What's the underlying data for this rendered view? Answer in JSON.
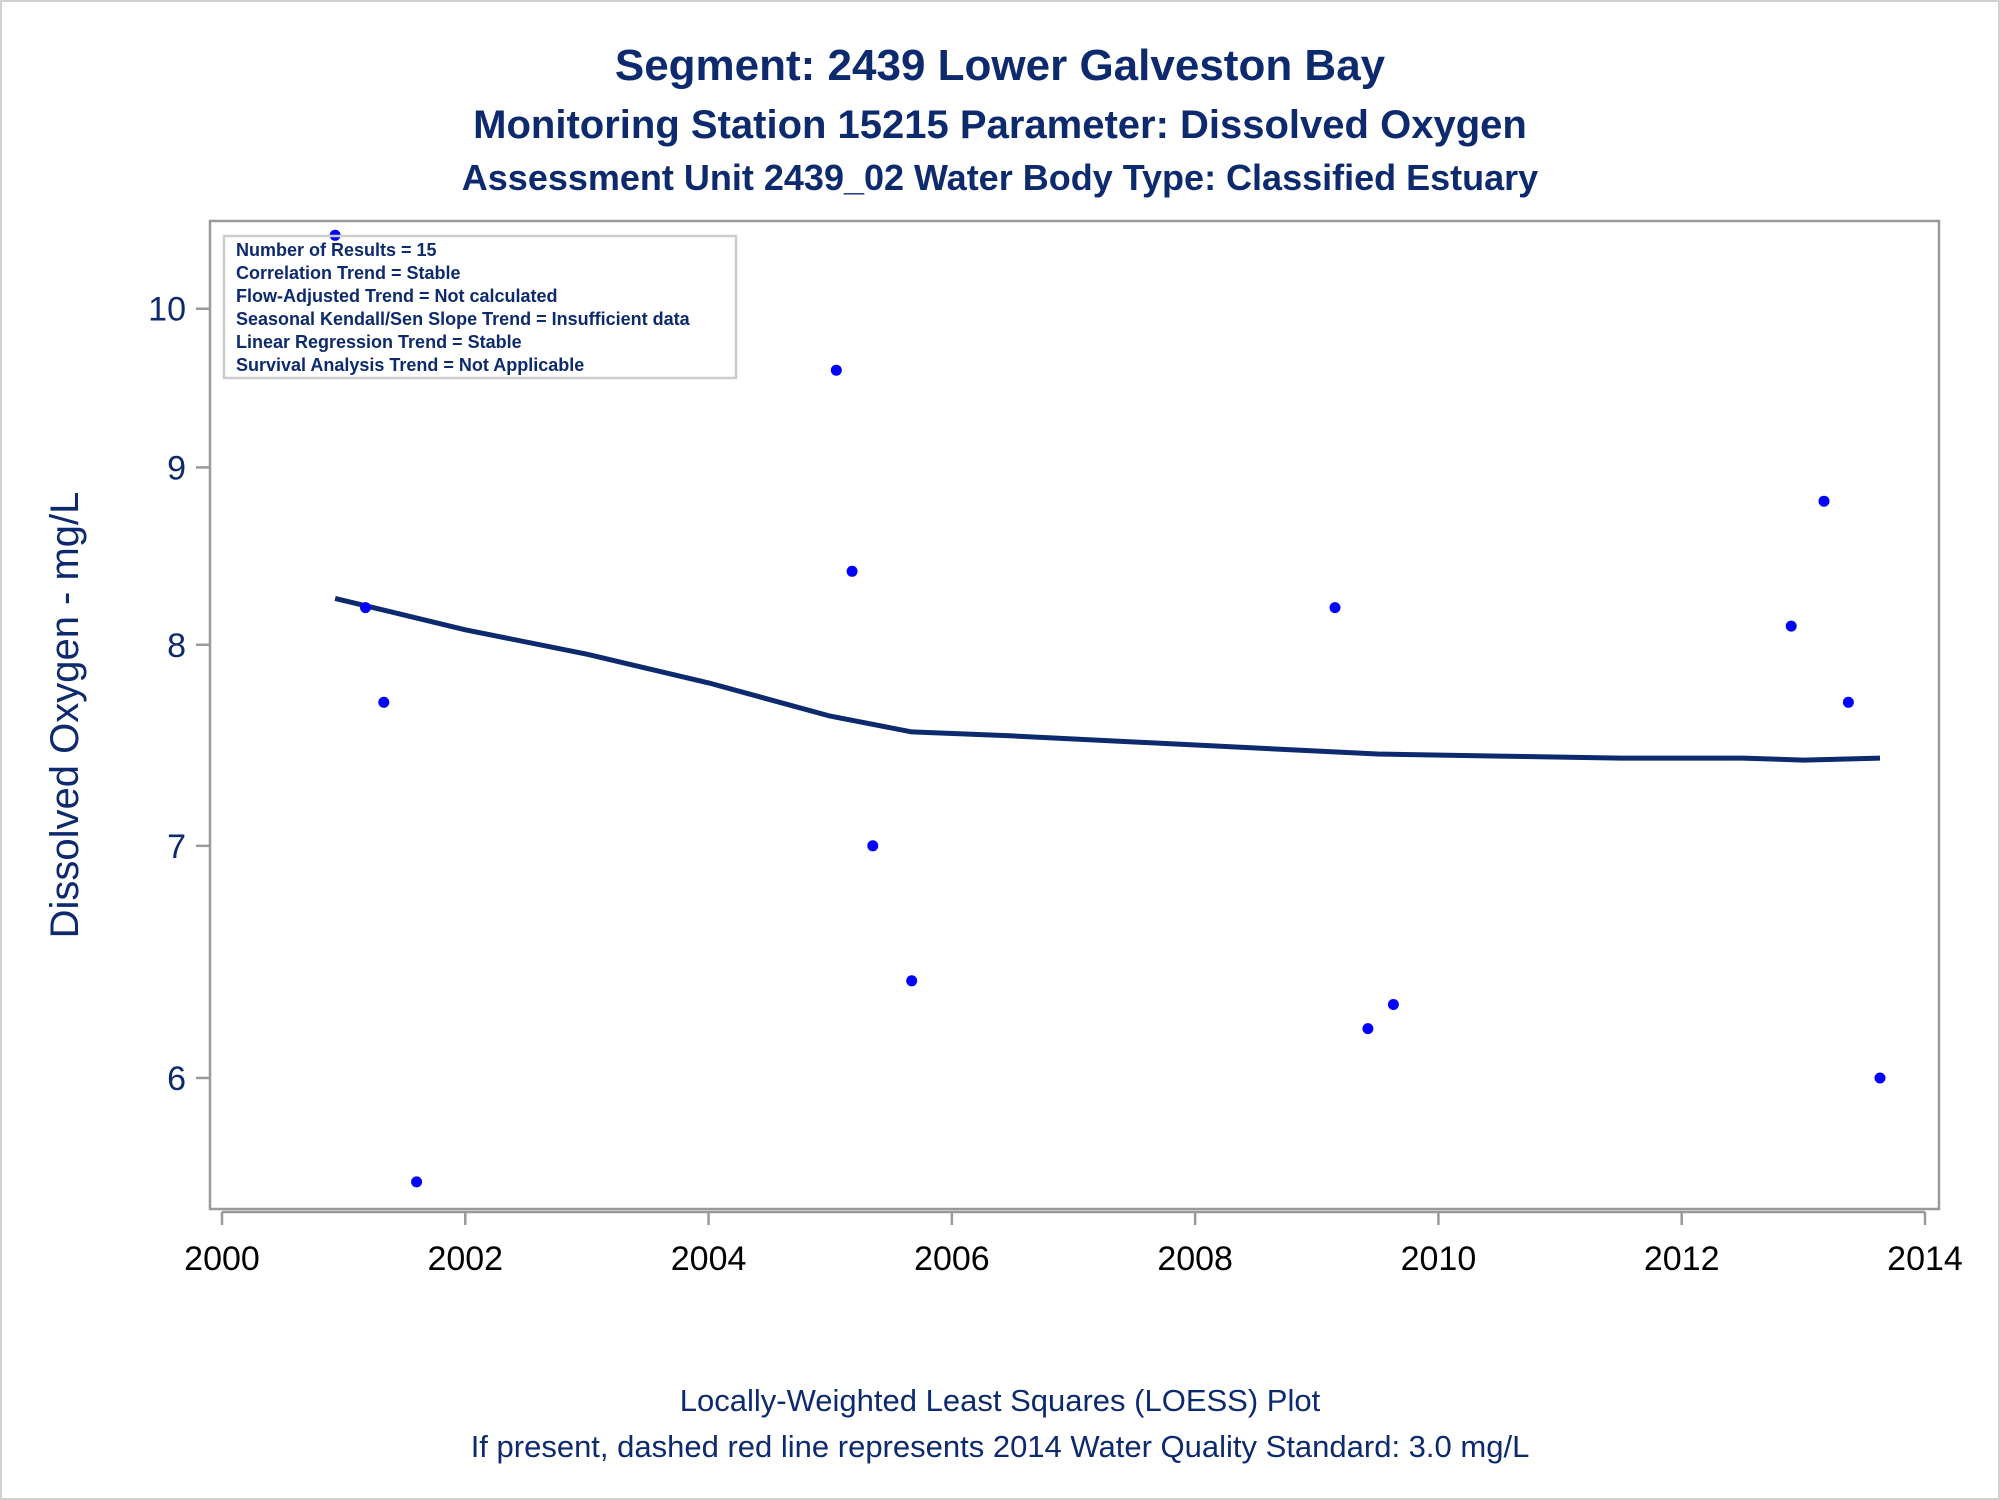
{
  "chart_data": {
    "type": "scatter",
    "title": "Segment: 2439  Lower Galveston Bay",
    "subtitle": "Monitoring Station 15215 Parameter: Dissolved Oxygen",
    "subtitle2": "Assessment Unit 2439_02   Water Body Type: Classified Estuary",
    "xlabel": "",
    "ylabel": "Dissolved Oxygen - mg/L",
    "xlim": [
      2000,
      2014
    ],
    "ylim": [
      5.5,
      10.6
    ],
    "y_scale": "log",
    "x_ticks": [
      "2000",
      "2002",
      "2004",
      "2006",
      "2008",
      "2010",
      "2012",
      "2014"
    ],
    "y_ticks": [
      "6",
      "7",
      "8",
      "9",
      "10"
    ],
    "grid": false,
    "legend": "none",
    "series": [
      {
        "type": "scatter",
        "color": "#0000ff",
        "points": [
          {
            "x": 2000.93,
            "y": 10.5
          },
          {
            "x": 2001.18,
            "y": 8.2
          },
          {
            "x": 2001.33,
            "y": 7.7
          },
          {
            "x": 2001.6,
            "y": 5.6
          },
          {
            "x": 2005.05,
            "y": 9.6
          },
          {
            "x": 2005.18,
            "y": 8.4
          },
          {
            "x": 2005.35,
            "y": 7.0
          },
          {
            "x": 2005.67,
            "y": 6.4
          },
          {
            "x": 2009.15,
            "y": 8.2
          },
          {
            "x": 2009.42,
            "y": 6.2
          },
          {
            "x": 2009.63,
            "y": 6.3
          },
          {
            "x": 2012.9,
            "y": 8.1
          },
          {
            "x": 2013.17,
            "y": 8.8
          },
          {
            "x": 2013.37,
            "y": 7.7
          },
          {
            "x": 2013.63,
            "y": 6.0
          }
        ]
      },
      {
        "type": "line",
        "color": "#0d2a6e",
        "points": [
          {
            "x": 2000.93,
            "y": 8.25
          },
          {
            "x": 2002.0,
            "y": 8.08
          },
          {
            "x": 2003.0,
            "y": 7.95
          },
          {
            "x": 2004.0,
            "y": 7.8
          },
          {
            "x": 2005.0,
            "y": 7.63
          },
          {
            "x": 2005.67,
            "y": 7.55
          },
          {
            "x": 2006.5,
            "y": 7.53
          },
          {
            "x": 2007.5,
            "y": 7.5
          },
          {
            "x": 2008.5,
            "y": 7.47
          },
          {
            "x": 2009.5,
            "y": 7.44
          },
          {
            "x": 2010.5,
            "y": 7.43
          },
          {
            "x": 2011.5,
            "y": 7.42
          },
          {
            "x": 2012.5,
            "y": 7.42
          },
          {
            "x": 2013.0,
            "y": 7.41
          },
          {
            "x": 2013.63,
            "y": 7.42
          }
        ]
      }
    ],
    "annotations": [
      "Number of Results = 15",
      "Correlation Trend = Stable",
      "Flow-Adjusted Trend = Not calculated",
      "Seasonal Kendall/Sen Slope Trend = Insufficient data",
      "Linear Regression Trend = Stable",
      "Survival Analysis Trend = Not Applicable"
    ],
    "footnotes": [
      "Locally-Weighted Least Squares (LOESS) Plot",
      "If present, dashed red line represents 2014 Water Quality Standard: 3.0 mg/L"
    ]
  }
}
